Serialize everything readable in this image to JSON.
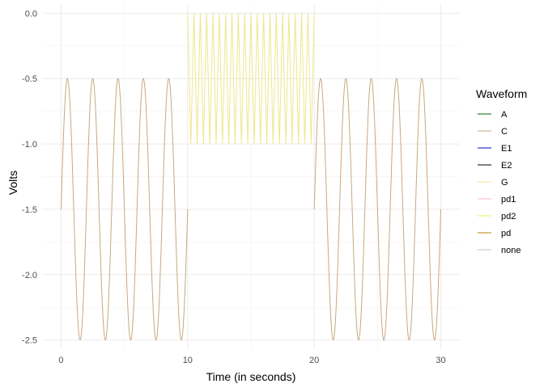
{
  "chart_data": {
    "type": "line",
    "xlabel": "Time (in seconds)",
    "ylabel": "Volts",
    "xlim": [
      -1.5,
      31.5
    ],
    "ylim": [
      -2.57,
      0.07
    ],
    "xticks": [
      0,
      10,
      20,
      30
    ],
    "xtick_labels": [
      "0",
      "10",
      "20",
      "30"
    ],
    "yticks": [
      0.0,
      -0.5,
      -1.0,
      -1.5,
      -2.0,
      -2.5
    ],
    "ytick_labels": [
      "0.0",
      "-0.5",
      "-1.0",
      "-1.5",
      "-2.0",
      "-2.5"
    ],
    "grid": true,
    "legend": {
      "title": "Waveform",
      "placement": "right",
      "entries": [
        {
          "label": "A",
          "color": "#006400"
        },
        {
          "label": "C",
          "color": "#c8a882"
        },
        {
          "label": "E1",
          "color": "#0000cd"
        },
        {
          "label": "E2",
          "color": "#000000"
        },
        {
          "label": "G",
          "color": "#f0e68c"
        },
        {
          "label": "pd1",
          "color": "#ffb6c1"
        },
        {
          "label": "pd2",
          "color": "#ccff66"
        },
        {
          "label": "pd",
          "color": "#b8860b"
        },
        {
          "label": "none",
          "color": "#c0c0c0"
        }
      ]
    },
    "series": [
      {
        "name": "C",
        "color": "#c8a882",
        "shape": "sine",
        "segments": [
          [
            0,
            10
          ],
          [
            20,
            30
          ]
        ],
        "period": 2.0,
        "min": -2.5,
        "max": -0.5,
        "start_value": -1.5
      },
      {
        "name": "G",
        "color": "#f0e68c",
        "shape": "triangle",
        "segments": [
          [
            10,
            20
          ]
        ],
        "period": 0.5,
        "min": -1.0,
        "max": 0.0
      }
    ]
  }
}
